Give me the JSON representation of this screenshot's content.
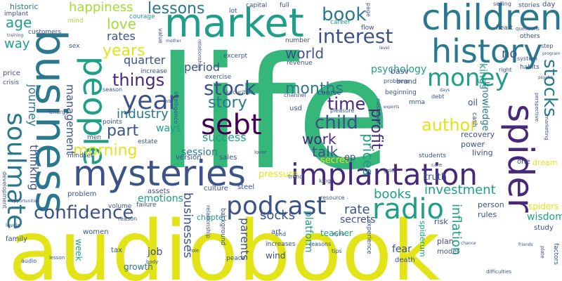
{
  "colors": {
    "yellow": "#e2e418",
    "lime": "#a5db36",
    "green": "#35b779",
    "teal": "#1f9e89",
    "blue": "#2a788e",
    "navy": "#3b528b",
    "purple": "#482878",
    "dark": "#440154"
  },
  "words": {
    "life": "life",
    "audiobook": "audiobook",
    "mysteries": "mysteries",
    "business": "business",
    "market": "market",
    "children": "children",
    "implantation": "implantation",
    "history": "history",
    "people": "people",
    "spider": "spider",
    "soulmate": "soulmate",
    "radio": "radio",
    "sebt": "sebt",
    "money": "money",
    "year": "year",
    "podcast": "podcast",
    "stock": "stock",
    "interest": "interest",
    "book": "book",
    "child": "child",
    "confidence": "confidence",
    "things": "things",
    "stocks": "stocks",
    "story": "story",
    "time": "time",
    "author": "author",
    "morning": "morning",
    "part": "part",
    "years": "years",
    "months": "months",
    "world": "world",
    "happiness": "happiness",
    "lessons": "lessons",
    "love": "love",
    "profit": "profit",
    "prices": "prices",
    "books": "books",
    "investment": "investment",
    "socks": "socks",
    "rate": "rate",
    "businesses": "businesses",
    "parents": "parents",
    "inflation": "inflation",
    "industry": "industry",
    "work": "work",
    "talk": "talk",
    "success": "success",
    "period": "period",
    "quarter": "quarter",
    "rates": "rates",
    "way": "way",
    "age": "age",
    "thinking": "thinking",
    "journey": "journey",
    "management": "management",
    "psychology": "psychology",
    "knowledge": "knowledge",
    "kings": "kings",
    "no": "no",
    "emotions": "emotions",
    "ways": "ways",
    "session": "session",
    "secrets": "secrets",
    "secret": "secret",
    "ep": "ep",
    "pressure": "pressure",
    "truth": "truth",
    "spiders": "spiders",
    "wisdom": "wisdom",
    "platform": "platform",
    "fear": "fear",
    "job": "job",
    "week": "week",
    "growth": "growth",
    "wind": "wind",
    "chapter": "chapter",
    "teacher": "teacher",
    "historic": "historic",
    "implant": "implant",
    "customers": "customers",
    "courage": "courage",
    "mind": "mind",
    "capital": "capital",
    "full": "full",
    "lot": "lot",
    "career": "career",
    "flow": "flow",
    "page": "page",
    "day": "day",
    "stories": "stories",
    "selling": "selling",
    "price": "price",
    "crisis": "crisis",
    "sex": "sex",
    "value": "value",
    "excerpt": "excerpt",
    "number": "number",
    "revenue": "revenue",
    "basv": "basv",
    "brand": "brand",
    "heart": "heart",
    "habits": "habits",
    "right": "right",
    "system": "system",
    "step": "step",
    "others": "others",
    "questions": "questions",
    "oil": "oil",
    "usd": "usd",
    "course": "course",
    "beginning": "beginning",
    "mma": "mma",
    "debt": "debt",
    "cash": "cash",
    "recovery": "recovery",
    "power": "power",
    "living": "living",
    "dream": "dream",
    "one": "one",
    "study": "study",
    "rules": "rules",
    "person": "person",
    "risk": "risk",
    "plan": "plan",
    "model": "model",
    "death": "death",
    "experience": "experience",
    "spiderum": "spiderum",
    "tips": "tips",
    "women": "women",
    "tax": "tax",
    "family": "family",
    "audio": "audio",
    "art": "art",
    "steel": "steel",
    "culture": "culture",
    "assets": "assets",
    "problem": "problem",
    "volume": "volume",
    "failure": "failure",
    "version": "version",
    "sales": "sales",
    "mindset": "mindset",
    "estate": "estate",
    "points": "points",
    "men": "men",
    "energy": "energy",
    "intelligence": "intelligence",
    "exercise": "exercise",
    "increase": "increase",
    "season": "season",
    "securities": "securities",
    "channel": "channel",
    "pleasure": "pleasure",
    "problems": "problems",
    "mistakes": "mistakes",
    "students": "students",
    "care": "care",
    "trend": "trend",
    "king": "king",
    "lover": "lover",
    "gold": "gold",
    "increases": "increases",
    "reasons": "reasons",
    "eyes": "eyes",
    "peace": "peace",
    "end": "end",
    "body": "body",
    "lesson": "lesson",
    "levels": "levels",
    "development": "development",
    "opportunities": "opportunities",
    "relationships": "relationships",
    "relationship": "relationship",
    "background": "background",
    "reason": "reason",
    "resource": "resource",
    "marketing": "marketing",
    "perspective": "perspective",
    "difficulties": "difficulties",
    "friends": "friends",
    "factors": "factors",
    "plate": "plate",
    "training": "training",
    "mother": "mother",
    "jobs": "jobs",
    "days": "days",
    "exports": "exports",
    "level": "level",
    "psycho": "psycho",
    "program": "program",
    "role": "role",
    "chance": "chance"
  }
}
